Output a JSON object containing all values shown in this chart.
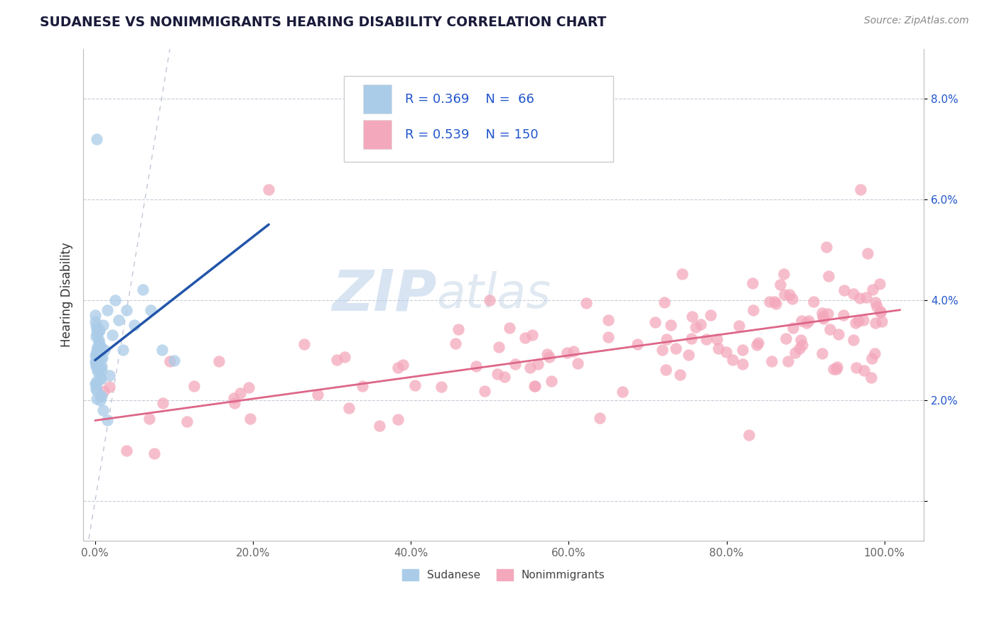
{
  "title": "SUDANESE VS NONIMMIGRANTS HEARING DISABILITY CORRELATION CHART",
  "source": "Source: ZipAtlas.com",
  "ylabel": "Hearing Disability",
  "xlabel": "",
  "watermark_zip": "ZIP",
  "watermark_atlas": "atlas",
  "xlim": [
    -0.015,
    1.05
  ],
  "ylim": [
    -0.008,
    0.09
  ],
  "xticks": [
    0.0,
    0.2,
    0.4,
    0.6,
    0.8,
    1.0
  ],
  "yticks": [
    0.0,
    0.02,
    0.04,
    0.06,
    0.08
  ],
  "xtick_labels": [
    "0.0%",
    "20.0%",
    "40.0%",
    "60.0%",
    "80.0%",
    "100.0%"
  ],
  "ytick_labels_right": [
    "",
    "2.0%",
    "4.0%",
    "6.0%",
    "8.0%"
  ],
  "sudanese_color": "#aacce8",
  "nonimmigrant_color": "#f4a8bc",
  "regression_color_sudanese": "#2255aa",
  "regression_color_nonimmigrant": "#dd6688",
  "diagonal_color": "#b0b8cc",
  "background_color": "#ffffff",
  "grid_color": "#c8ccd8",
  "title_color": "#1a1a3a",
  "legend_text_color": "#2255cc",
  "ytick_label_color": "#2255cc"
}
